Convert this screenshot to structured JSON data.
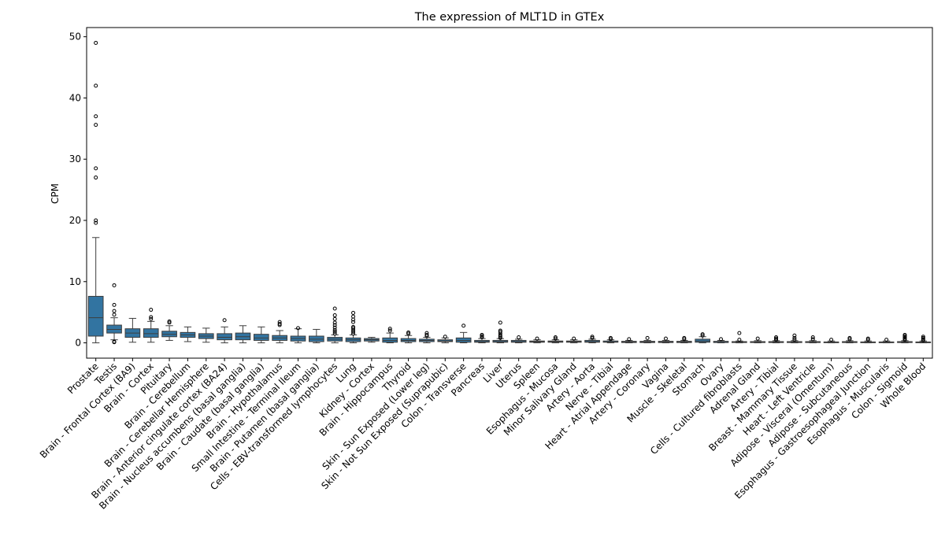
{
  "chart_data": {
    "type": "box",
    "title": "The expression of MLT1D in GTEx",
    "xlabel": "",
    "ylabel": "CPM",
    "ylim": [
      -2.5,
      51.5
    ],
    "yticks": [
      0,
      10,
      20,
      30,
      40,
      50
    ],
    "grid": false,
    "legend": "none",
    "box_color": "#3274a1",
    "categories": [
      "Prostate",
      "Testis",
      "Brain - Frontal Cortex (BA9)",
      "Brain - Cortex",
      "Pituitary",
      "Brain - Cerebellum",
      "Brain - Cerebellar Hemisphere",
      "Brain - Anterior cingulate cortex (BA24)",
      "Brain - Nucleus accumbens (basal ganglia)",
      "Brain - Caudate (basal ganglia)",
      "Brain - Hypothalamus",
      "Small Intestine - Terminal Ileum",
      "Brain - Putamen (basal ganglia)",
      "Cells - EBV-transformed lymphocytes",
      "Lung",
      "Kidney - Cortex",
      "Brain - Hippocampus",
      "Thyroid",
      "Skin - Sun Exposed (Lower leg)",
      "Skin - Not Sun Exposed (Suprapubic)",
      "Colon - Transverse",
      "Pancreas",
      "Liver",
      "Uterus",
      "Spleen",
      "Esophagus - Mucosa",
      "Minor Salivary Gland",
      "Artery - Aorta",
      "Nerve - Tibial",
      "Heart - Atrial Appendage",
      "Artery - Coronary",
      "Vagina",
      "Muscle - Skeletal",
      "Stomach",
      "Ovary",
      "Cells - Cultured fibroblasts",
      "Adrenal Gland",
      "Artery - Tibial",
      "Breast - Mammary Tissue",
      "Heart - Left Ventricle",
      "Adipose - Visceral (Omentum)",
      "Adipose - Subcutaneous",
      "Esophagus - Gastroesophageal Junction",
      "Esophagus - Muscularis",
      "Colon - Sigmoid",
      "Whole Blood"
    ],
    "boxes": [
      {
        "whislo": 0.0,
        "q1": 1.1,
        "med": 4.1,
        "q3": 7.6,
        "whishi": 17.2,
        "fliers": [
          19.6,
          20.0,
          27.0,
          28.5,
          35.6,
          37.0,
          42.0,
          49.0
        ]
      },
      {
        "whislo": 0.5,
        "q1": 1.6,
        "med": 2.2,
        "q3": 2.9,
        "whishi": 4.1,
        "fliers": [
          0.1,
          0.2,
          4.6,
          5.2,
          6.2,
          9.4
        ]
      },
      {
        "whislo": 0.1,
        "q1": 0.9,
        "med": 1.6,
        "q3": 2.3,
        "whishi": 4.0,
        "fliers": []
      },
      {
        "whislo": 0.1,
        "q1": 0.9,
        "med": 1.5,
        "q3": 2.3,
        "whishi": 3.5,
        "fliers": [
          3.9,
          4.2,
          5.4
        ]
      },
      {
        "whislo": 0.4,
        "q1": 1.0,
        "med": 1.4,
        "q3": 1.9,
        "whishi": 2.8,
        "fliers": [
          3.3,
          3.5
        ]
      },
      {
        "whislo": 0.2,
        "q1": 0.9,
        "med": 1.3,
        "q3": 1.7,
        "whishi": 2.6,
        "fliers": []
      },
      {
        "whislo": 0.1,
        "q1": 0.7,
        "med": 1.1,
        "q3": 1.5,
        "whishi": 2.4,
        "fliers": []
      },
      {
        "whislo": 0.0,
        "q1": 0.5,
        "med": 0.9,
        "q3": 1.5,
        "whishi": 2.6,
        "fliers": [
          3.7
        ]
      },
      {
        "whislo": 0.0,
        "q1": 0.5,
        "med": 1.0,
        "q3": 1.6,
        "whishi": 2.8,
        "fliers": []
      },
      {
        "whislo": 0.0,
        "q1": 0.4,
        "med": 0.8,
        "q3": 1.4,
        "whishi": 2.6,
        "fliers": []
      },
      {
        "whislo": 0.0,
        "q1": 0.4,
        "med": 0.8,
        "q3": 1.2,
        "whishi": 2.0,
        "fliers": [
          2.9,
          3.1,
          3.4
        ]
      },
      {
        "whislo": 0.0,
        "q1": 0.3,
        "med": 0.7,
        "q3": 1.1,
        "whishi": 2.3,
        "fliers": [
          2.4
        ]
      },
      {
        "whislo": 0.0,
        "q1": 0.2,
        "med": 0.6,
        "q3": 1.1,
        "whishi": 2.2,
        "fliers": []
      },
      {
        "whislo": 0.0,
        "q1": 0.3,
        "med": 0.6,
        "q3": 0.9,
        "whishi": 1.3,
        "fliers": [
          1.5,
          1.8,
          2.1,
          2.5,
          2.9,
          3.3,
          3.9,
          4.5,
          5.6
        ]
      },
      {
        "whislo": 0.0,
        "q1": 0.2,
        "med": 0.5,
        "q3": 0.8,
        "whishi": 1.3,
        "fliers": [
          1.5,
          1.8,
          2.1,
          2.4,
          2.6,
          3.4,
          3.8,
          4.3,
          4.9
        ]
      },
      {
        "whislo": 0.1,
        "q1": 0.3,
        "med": 0.5,
        "q3": 0.7,
        "whishi": 0.9,
        "fliers": []
      },
      {
        "whislo": 0.0,
        "q1": 0.1,
        "med": 0.4,
        "q3": 0.8,
        "whishi": 1.6,
        "fliers": [
          2.0,
          2.3
        ]
      },
      {
        "whislo": 0.0,
        "q1": 0.2,
        "med": 0.4,
        "q3": 0.7,
        "whishi": 1.2,
        "fliers": [
          1.5,
          1.7
        ]
      },
      {
        "whislo": 0.0,
        "q1": 0.2,
        "med": 0.4,
        "q3": 0.6,
        "whishi": 0.9,
        "fliers": [
          1.1,
          1.3,
          1.6
        ]
      },
      {
        "whislo": 0.0,
        "q1": 0.2,
        "med": 0.3,
        "q3": 0.5,
        "whishi": 0.8,
        "fliers": [
          1.0
        ]
      },
      {
        "whislo": 0.0,
        "q1": 0.1,
        "med": 0.4,
        "q3": 0.8,
        "whishi": 1.7,
        "fliers": [
          2.8
        ]
      },
      {
        "whislo": 0.0,
        "q1": 0.1,
        "med": 0.2,
        "q3": 0.4,
        "whishi": 0.7,
        "fliers": [
          0.9,
          1.1,
          1.3
        ]
      },
      {
        "whislo": 0.0,
        "q1": 0.1,
        "med": 0.2,
        "q3": 0.4,
        "whishi": 0.7,
        "fliers": [
          0.8,
          1.0,
          1.2,
          1.5,
          1.8,
          2.0,
          3.3
        ]
      },
      {
        "whislo": 0.0,
        "q1": 0.1,
        "med": 0.2,
        "q3": 0.4,
        "whishi": 0.6,
        "fliers": [
          0.9
        ]
      },
      {
        "whislo": 0.0,
        "q1": 0.1,
        "med": 0.2,
        "q3": 0.3,
        "whishi": 0.5,
        "fliers": [
          0.7
        ]
      },
      {
        "whislo": 0.0,
        "q1": 0.1,
        "med": 0.2,
        "q3": 0.3,
        "whishi": 0.5,
        "fliers": [
          0.7,
          0.9
        ]
      },
      {
        "whislo": 0.0,
        "q1": 0.1,
        "med": 0.2,
        "q3": 0.3,
        "whishi": 0.5,
        "fliers": [
          0.7
        ]
      },
      {
        "whislo": 0.0,
        "q1": 0.1,
        "med": 0.2,
        "q3": 0.4,
        "whishi": 0.6,
        "fliers": [
          0.8,
          1.0
        ]
      },
      {
        "whislo": 0.0,
        "q1": 0.1,
        "med": 0.15,
        "q3": 0.3,
        "whishi": 0.5,
        "fliers": [
          0.6,
          0.8
        ]
      },
      {
        "whislo": 0.0,
        "q1": 0.05,
        "med": 0.15,
        "q3": 0.25,
        "whishi": 0.4,
        "fliers": [
          0.6
        ]
      },
      {
        "whislo": 0.0,
        "q1": 0.05,
        "med": 0.15,
        "q3": 0.25,
        "whishi": 0.4,
        "fliers": [
          0.8
        ]
      },
      {
        "whislo": 0.0,
        "q1": 0.05,
        "med": 0.15,
        "q3": 0.25,
        "whishi": 0.4,
        "fliers": [
          0.7
        ]
      },
      {
        "whislo": 0.0,
        "q1": 0.05,
        "med": 0.15,
        "q3": 0.25,
        "whishi": 0.4,
        "fliers": [
          0.6,
          0.8
        ]
      },
      {
        "whislo": 0.0,
        "q1": 0.1,
        "med": 0.3,
        "q3": 0.6,
        "whishi": 1.0,
        "fliers": [
          1.2,
          1.4
        ]
      },
      {
        "whislo": 0.0,
        "q1": 0.05,
        "med": 0.1,
        "q3": 0.25,
        "whishi": 0.4,
        "fliers": [
          0.6
        ]
      },
      {
        "whislo": 0.0,
        "q1": 0.05,
        "med": 0.1,
        "q3": 0.2,
        "whishi": 0.3,
        "fliers": [
          0.5,
          1.6
        ]
      },
      {
        "whislo": 0.0,
        "q1": 0.05,
        "med": 0.1,
        "q3": 0.2,
        "whishi": 0.35,
        "fliers": [
          0.7
        ]
      },
      {
        "whislo": 0.0,
        "q1": 0.05,
        "med": 0.1,
        "q3": 0.2,
        "whishi": 0.35,
        "fliers": [
          0.5,
          0.7,
          0.9
        ]
      },
      {
        "whislo": 0.0,
        "q1": 0.05,
        "med": 0.1,
        "q3": 0.2,
        "whishi": 0.35,
        "fliers": [
          0.5,
          0.8,
          1.2
        ]
      },
      {
        "whislo": 0.0,
        "q1": 0.05,
        "med": 0.1,
        "q3": 0.2,
        "whishi": 0.35,
        "fliers": [
          0.6,
          0.9
        ]
      },
      {
        "whislo": 0.0,
        "q1": 0.05,
        "med": 0.1,
        "q3": 0.15,
        "whishi": 0.3,
        "fliers": [
          0.5
        ]
      },
      {
        "whislo": 0.0,
        "q1": 0.05,
        "med": 0.1,
        "q3": 0.2,
        "whishi": 0.35,
        "fliers": [
          0.6,
          0.8
        ]
      },
      {
        "whislo": 0.0,
        "q1": 0.05,
        "med": 0.1,
        "q3": 0.15,
        "whishi": 0.3,
        "fliers": [
          0.5,
          0.7
        ]
      },
      {
        "whislo": 0.0,
        "q1": 0.05,
        "med": 0.1,
        "q3": 0.15,
        "whishi": 0.3,
        "fliers": [
          0.5
        ]
      },
      {
        "whislo": 0.0,
        "q1": 0.05,
        "med": 0.1,
        "q3": 0.2,
        "whishi": 0.35,
        "fliers": [
          0.5,
          0.7,
          0.9,
          1.1,
          1.3
        ]
      },
      {
        "whislo": 0.0,
        "q1": 0.02,
        "med": 0.05,
        "q3": 0.15,
        "whishi": 0.3,
        "fliers": [
          0.4,
          0.6,
          0.8,
          1.0
        ]
      }
    ]
  }
}
